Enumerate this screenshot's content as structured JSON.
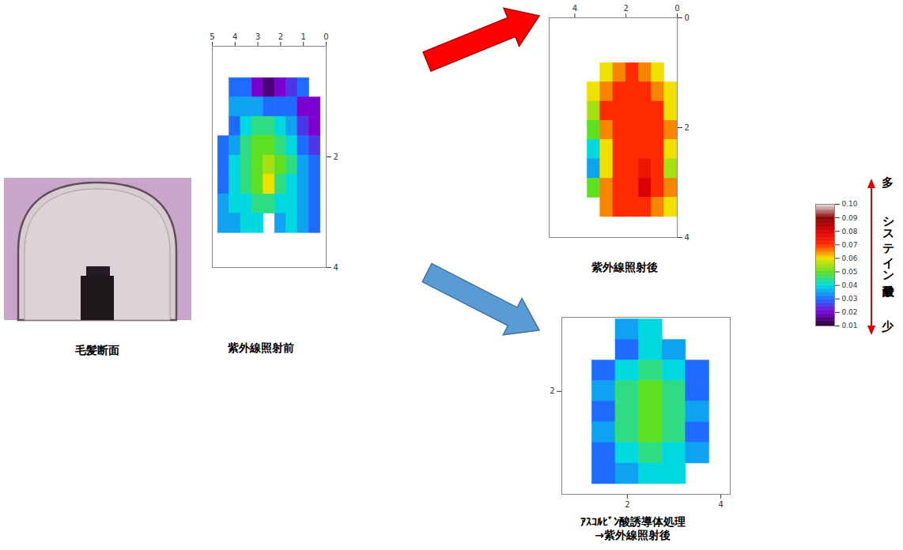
{
  "chart_data": [
    {
      "type": "heatmap",
      "title": "紫外線照射前",
      "xlim": [
        5,
        0
      ],
      "xticks": [
        5,
        4,
        3,
        2,
        1,
        0
      ],
      "ylim": [
        4,
        0
      ],
      "yticks": [
        2,
        4
      ],
      "x": [
        4.5,
        4.0,
        3.5,
        3.0,
        2.5,
        2.0,
        1.5,
        1.0,
        0.5
      ],
      "y": [
        0.75,
        1.1,
        1.45,
        1.8,
        2.15,
        2.5,
        2.85,
        3.2
      ],
      "cells": [
        [
          null,
          0.03,
          0.03,
          0.02,
          0.015,
          0.02,
          0.025,
          0.03,
          null
        ],
        [
          null,
          0.035,
          0.035,
          0.035,
          0.03,
          0.03,
          0.03,
          0.02,
          0.02
        ],
        [
          null,
          0.03,
          0.04,
          0.045,
          0.045,
          0.04,
          0.035,
          0.025,
          0.02
        ],
        [
          0.03,
          0.035,
          0.045,
          0.05,
          0.05,
          0.045,
          0.04,
          0.03,
          0.025
        ],
        [
          0.03,
          0.04,
          0.045,
          0.05,
          0.055,
          0.05,
          0.045,
          0.035,
          0.03
        ],
        [
          0.03,
          0.04,
          0.045,
          0.05,
          0.06,
          0.045,
          0.04,
          0.035,
          0.03
        ],
        [
          0.035,
          0.04,
          0.04,
          0.045,
          0.045,
          0.04,
          0.04,
          0.035,
          0.03
        ],
        [
          0.035,
          0.035,
          0.04,
          0.04,
          null,
          0.035,
          0.04,
          0.035,
          0.03
        ]
      ]
    },
    {
      "type": "heatmap",
      "title": "紫外線照射後",
      "xlim": [
        5,
        0
      ],
      "xticks": [
        4,
        2,
        0
      ],
      "ylim": [
        4,
        0
      ],
      "yticks": [
        0,
        2,
        4
      ],
      "x": [
        3.25,
        2.75,
        2.25,
        1.75,
        1.25,
        0.75,
        0.25
      ],
      "y": [
        1.0,
        1.35,
        1.7,
        2.05,
        2.4,
        2.75,
        3.1,
        3.45
      ],
      "cells": [
        [
          null,
          0.06,
          0.065,
          0.07,
          0.065,
          0.06,
          null
        ],
        [
          0.06,
          0.065,
          0.07,
          0.07,
          0.07,
          0.065,
          0.06
        ],
        [
          0.055,
          0.07,
          0.07,
          0.07,
          0.07,
          0.07,
          0.06
        ],
        [
          0.05,
          0.065,
          0.07,
          0.07,
          0.07,
          0.07,
          0.065
        ],
        [
          0.04,
          0.06,
          0.07,
          0.07,
          0.07,
          0.07,
          0.06
        ],
        [
          0.035,
          0.06,
          0.07,
          0.07,
          0.075,
          0.07,
          0.055
        ],
        [
          0.05,
          0.065,
          0.07,
          0.07,
          0.08,
          0.07,
          0.065
        ],
        [
          null,
          0.065,
          0.07,
          0.07,
          0.07,
          0.065,
          0.06
        ]
      ]
    },
    {
      "type": "heatmap",
      "title": "ｱｽｺﾙﾋﾞﾝ酸誘導体処理\n→紫外線照射後",
      "xlim": [
        0.6,
        4.2
      ],
      "xticks": [
        2,
        4
      ],
      "ylim": [
        -0.5,
        3.8
      ],
      "yticks": [
        2
      ],
      "x": [
        1.5,
        2.0,
        2.5,
        3.0,
        3.5
      ],
      "y": [
        3.5,
        3.0,
        2.5,
        2.0,
        1.5,
        1.0,
        0.5,
        0.0
      ],
      "cells": [
        [
          null,
          0.035,
          0.04,
          null,
          null
        ],
        [
          null,
          0.03,
          0.04,
          0.035,
          null
        ],
        [
          0.03,
          0.04,
          0.045,
          0.04,
          0.03
        ],
        [
          0.035,
          0.045,
          0.05,
          0.045,
          0.03
        ],
        [
          0.03,
          0.045,
          0.05,
          0.045,
          0.035
        ],
        [
          0.035,
          0.045,
          0.05,
          0.045,
          0.03
        ],
        [
          0.03,
          0.04,
          0.045,
          0.04,
          0.035
        ],
        [
          0.03,
          0.035,
          0.04,
          0.04,
          null
        ]
      ]
    }
  ],
  "photo": {
    "caption": "毛髪断面"
  },
  "color_bar": {
    "range": [
      0.01,
      0.1
    ],
    "ticks": [
      0.01,
      0.02,
      0.03,
      0.04,
      0.05,
      0.06,
      0.07,
      0.08,
      0.09,
      {
        "value": 0.1,
        "label": "0.10"
      }
    ],
    "label": "システイン酸量",
    "high": "多",
    "low": "少"
  }
}
